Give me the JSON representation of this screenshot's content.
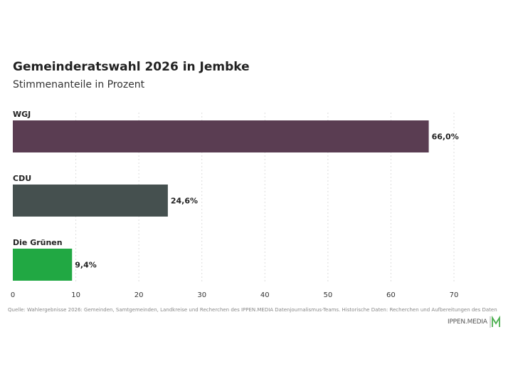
{
  "title": "Gemeinderatswahl 2026 in Jembke",
  "subtitle": "Stimmenanteile in Prozent",
  "source": "Quelle: Wahlergebnisse 2026: Gemeinden, Samtgemeinden, Landkreise und Recherchen des IPPEN.MEDIA Datenjournalismus-Teams. Historische Daten: Recherchen und Aufbereitungen des Daten",
  "brand": {
    "name": "IPPEN.MEDIA",
    "logo_icon": "ippen-media-m-logo-icon",
    "logo_color": "#4caf50"
  },
  "chart_data": {
    "type": "bar",
    "orientation": "horizontal",
    "categories": [
      "WGJ",
      "CDU",
      "Die Grünen"
    ],
    "values": [
      66.0,
      24.6,
      9.4
    ],
    "value_labels": [
      "66,0%",
      "24,6%",
      "9,4%"
    ],
    "colors": [
      "#5a3d52",
      "#45504f",
      "#21a843"
    ],
    "xlim": [
      0,
      70
    ],
    "xticks": [
      0,
      10,
      20,
      30,
      40,
      50,
      60,
      70
    ],
    "grid": true,
    "grid_color": "#dddddd"
  }
}
